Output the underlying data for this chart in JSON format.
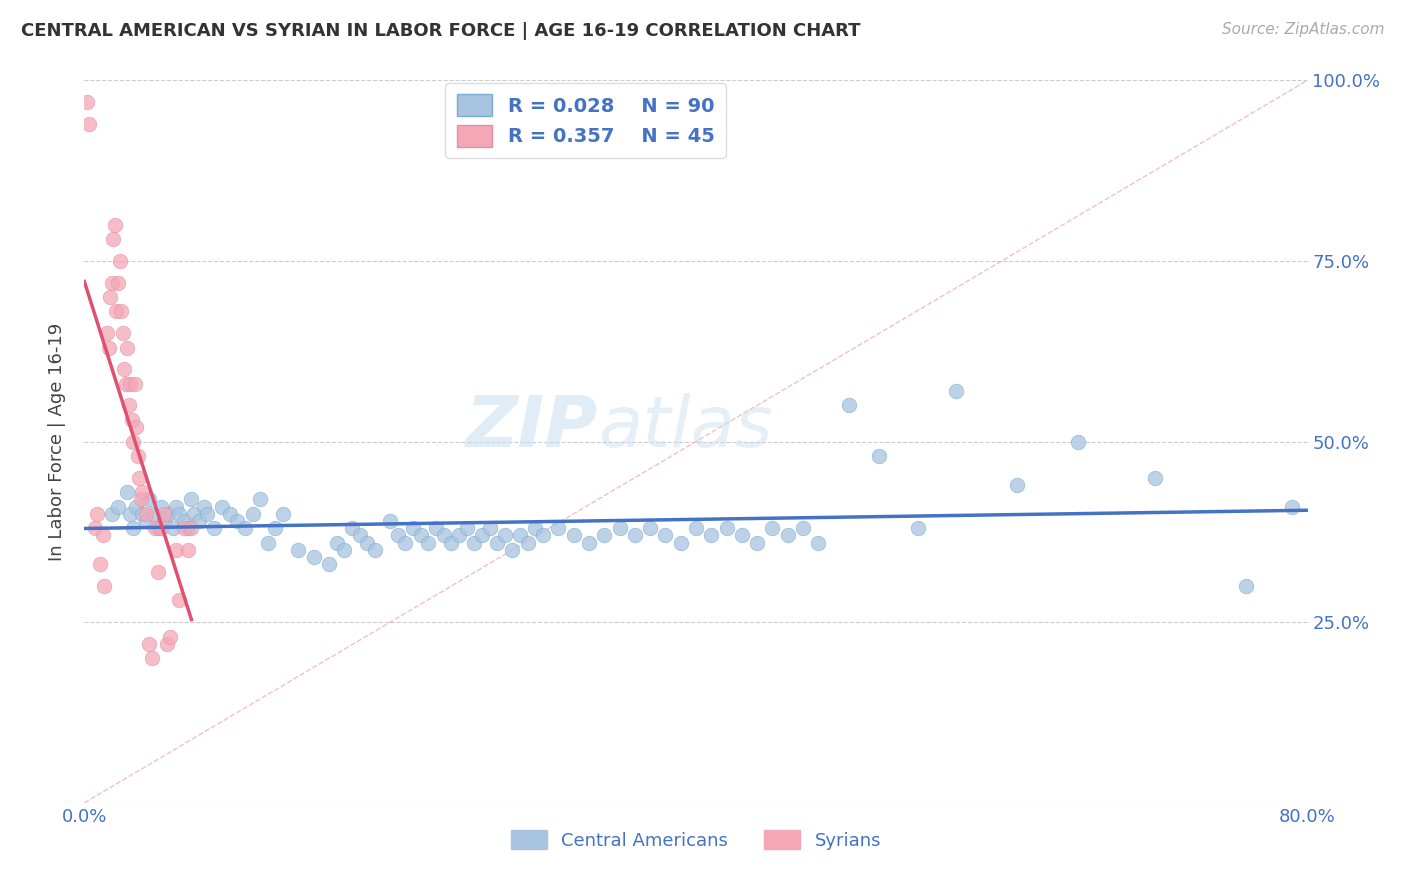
{
  "title": "CENTRAL AMERICAN VS SYRIAN IN LABOR FORCE | AGE 16-19 CORRELATION CHART",
  "source": "Source: ZipAtlas.com",
  "ylabel": "In Labor Force | Age 16-19",
  "xlim": [
    0.0,
    0.8
  ],
  "ylim": [
    0.0,
    1.0
  ],
  "blue_color": "#a8c4e0",
  "blue_color_dark": "#4472c4",
  "pink_color": "#f4a7b5",
  "pink_color_dark": "#e05070",
  "diag_color": "#f0b0b8",
  "grid_color": "#cccccc",
  "blue_scatter_x": [
    0.018,
    0.022,
    0.028,
    0.03,
    0.032,
    0.034,
    0.038,
    0.04,
    0.042,
    0.045,
    0.048,
    0.05,
    0.052,
    0.055,
    0.058,
    0.06,
    0.062,
    0.065,
    0.068,
    0.07,
    0.072,
    0.075,
    0.078,
    0.08,
    0.085,
    0.09,
    0.095,
    0.1,
    0.105,
    0.11,
    0.115,
    0.12,
    0.125,
    0.13,
    0.14,
    0.15,
    0.16,
    0.165,
    0.17,
    0.175,
    0.18,
    0.185,
    0.19,
    0.2,
    0.205,
    0.21,
    0.215,
    0.22,
    0.225,
    0.23,
    0.235,
    0.24,
    0.245,
    0.25,
    0.255,
    0.26,
    0.265,
    0.27,
    0.275,
    0.28,
    0.285,
    0.29,
    0.295,
    0.3,
    0.31,
    0.32,
    0.33,
    0.34,
    0.35,
    0.36,
    0.37,
    0.38,
    0.39,
    0.4,
    0.41,
    0.42,
    0.43,
    0.44,
    0.45,
    0.46,
    0.47,
    0.48,
    0.5,
    0.52,
    0.545,
    0.57,
    0.61,
    0.65,
    0.7,
    0.76,
    0.79
  ],
  "blue_scatter_y": [
    0.4,
    0.41,
    0.43,
    0.4,
    0.38,
    0.41,
    0.4,
    0.39,
    0.42,
    0.4,
    0.38,
    0.41,
    0.39,
    0.4,
    0.38,
    0.41,
    0.4,
    0.39,
    0.38,
    0.42,
    0.4,
    0.39,
    0.41,
    0.4,
    0.38,
    0.41,
    0.4,
    0.39,
    0.38,
    0.4,
    0.42,
    0.36,
    0.38,
    0.4,
    0.35,
    0.34,
    0.33,
    0.36,
    0.35,
    0.38,
    0.37,
    0.36,
    0.35,
    0.39,
    0.37,
    0.36,
    0.38,
    0.37,
    0.36,
    0.38,
    0.37,
    0.36,
    0.37,
    0.38,
    0.36,
    0.37,
    0.38,
    0.36,
    0.37,
    0.35,
    0.37,
    0.36,
    0.38,
    0.37,
    0.38,
    0.37,
    0.36,
    0.37,
    0.38,
    0.37,
    0.38,
    0.37,
    0.36,
    0.38,
    0.37,
    0.38,
    0.37,
    0.36,
    0.38,
    0.37,
    0.38,
    0.36,
    0.55,
    0.48,
    0.38,
    0.57,
    0.44,
    0.5,
    0.45,
    0.3,
    0.41
  ],
  "pink_scatter_x": [
    0.002,
    0.003,
    0.007,
    0.008,
    0.01,
    0.012,
    0.013,
    0.015,
    0.016,
    0.017,
    0.018,
    0.019,
    0.02,
    0.021,
    0.022,
    0.023,
    0.024,
    0.025,
    0.026,
    0.027,
    0.028,
    0.029,
    0.03,
    0.031,
    0.032,
    0.033,
    0.034,
    0.035,
    0.036,
    0.037,
    0.038,
    0.04,
    0.042,
    0.044,
    0.046,
    0.048,
    0.05,
    0.052,
    0.054,
    0.056,
    0.06,
    0.062,
    0.065,
    0.068,
    0.07
  ],
  "pink_scatter_y": [
    0.97,
    0.94,
    0.38,
    0.4,
    0.33,
    0.37,
    0.3,
    0.65,
    0.63,
    0.7,
    0.72,
    0.78,
    0.8,
    0.68,
    0.72,
    0.75,
    0.68,
    0.65,
    0.6,
    0.58,
    0.63,
    0.55,
    0.58,
    0.53,
    0.5,
    0.58,
    0.52,
    0.48,
    0.45,
    0.42,
    0.43,
    0.4,
    0.22,
    0.2,
    0.38,
    0.32,
    0.38,
    0.4,
    0.22,
    0.23,
    0.35,
    0.28,
    0.38,
    0.35,
    0.38
  ],
  "watermark_zip": "ZIP",
  "watermark_atlas": "atlas",
  "background_color": "#ffffff"
}
